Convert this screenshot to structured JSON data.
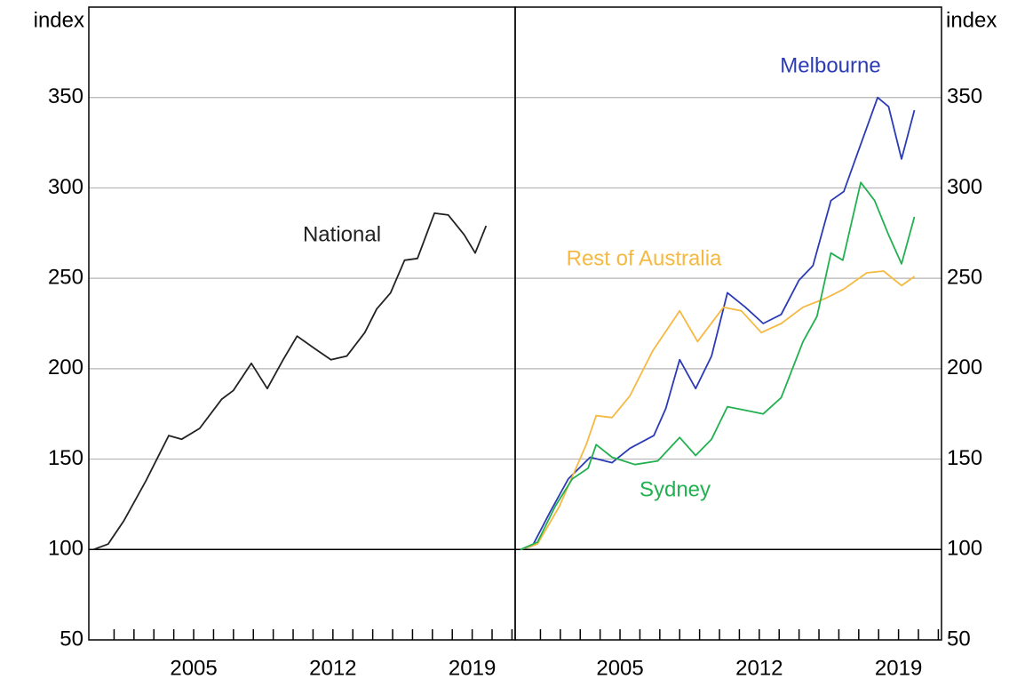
{
  "chart_data": [
    {
      "type": "line",
      "ylabel": "index",
      "y_axis_position": "left",
      "xlim": [
        1999.73,
        2021.16
      ],
      "xticks": [
        2005,
        2012,
        2019
      ],
      "minor_xticks": [
        2001,
        2002,
        2003,
        2004,
        2005,
        2006,
        2007,
        2008,
        2009,
        2010,
        2011,
        2012,
        2013,
        2014,
        2015,
        2016,
        2017,
        2018,
        2019,
        2020,
        2021
      ],
      "ylim": [
        50,
        400
      ],
      "yticks": [
        50,
        100,
        150,
        200,
        250,
        300,
        350
      ],
      "grid": true,
      "reference_line": 100,
      "series": [
        {
          "name": "National",
          "color": "#222222",
          "x": [
            1999.96,
            2000.7,
            2001.5,
            2002.6,
            2003.75,
            2004.4,
            2005.3,
            2006.4,
            2007.0,
            2007.9,
            2008.7,
            2009.5,
            2010.2,
            2011.1,
            2011.9,
            2012.7,
            2013.6,
            2014.2,
            2014.9,
            2015.6,
            2016.25,
            2017.1,
            2017.8,
            2018.6,
            2019.15,
            2019.7
          ],
          "values": [
            100,
            103,
            116,
            138,
            163,
            161,
            167,
            183,
            188,
            203,
            189,
            205,
            218,
            211,
            205,
            207,
            220,
            233,
            242,
            260,
            261,
            286,
            285,
            274,
            264,
            279
          ]
        }
      ]
    },
    {
      "type": "line",
      "ylabel": "index",
      "y_axis_position": "right",
      "xlim": [
        1999.73,
        2021.16
      ],
      "xticks": [
        2005,
        2012,
        2019
      ],
      "minor_xticks": [
        2001,
        2002,
        2003,
        2004,
        2005,
        2006,
        2007,
        2008,
        2009,
        2010,
        2011,
        2012,
        2013,
        2014,
        2015,
        2016,
        2017,
        2018,
        2019,
        2020,
        2021
      ],
      "ylim": [
        50,
        400
      ],
      "yticks": [
        50,
        100,
        150,
        200,
        250,
        300,
        350
      ],
      "grid": true,
      "reference_line": 100,
      "series": [
        {
          "name": "Melbourne",
          "color": "#2b3bb5",
          "x": [
            2000.0,
            2000.6,
            2001.5,
            2002.4,
            2003.5,
            2004.6,
            2005.5,
            2006.7,
            2007.3,
            2008.0,
            2008.8,
            2009.6,
            2010.4,
            2011.3,
            2012.2,
            2013.1,
            2014.0,
            2014.7,
            2015.6,
            2016.25,
            2016.9,
            2017.95,
            2018.5,
            2019.15,
            2019.8
          ],
          "values": [
            100,
            102,
            121,
            139,
            151,
            148,
            156,
            163,
            178,
            205,
            189,
            207,
            242,
            234,
            225,
            230,
            249,
            257,
            293,
            298,
            318,
            350,
            345,
            316,
            343
          ]
        },
        {
          "name": "Rest of Australia",
          "color": "#f5b942",
          "x": [
            2000.0,
            2000.85,
            2001.96,
            2003.3,
            2003.8,
            2004.6,
            2005.5,
            2006.65,
            2008.0,
            2008.9,
            2010.2,
            2011.1,
            2012.1,
            2013.1,
            2014.2,
            2015.35,
            2016.25,
            2017.4,
            2018.25,
            2019.15,
            2019.8
          ],
          "values": [
            100,
            103,
            124,
            158,
            174,
            173,
            185,
            210,
            232,
            215,
            234,
            232,
            220,
            225,
            234,
            239,
            244,
            253,
            254,
            246,
            251
          ]
        },
        {
          "name": "Sydney",
          "color": "#22b050",
          "x": [
            2000.0,
            2000.85,
            2001.75,
            2002.6,
            2003.4,
            2003.8,
            2004.6,
            2005.75,
            2006.9,
            2008.0,
            2008.8,
            2009.6,
            2010.4,
            2011.3,
            2012.2,
            2013.1,
            2014.2,
            2014.9,
            2015.6,
            2016.2,
            2017.1,
            2017.8,
            2018.5,
            2019.15,
            2019.8
          ],
          "values": [
            100,
            104,
            124,
            139,
            145,
            158,
            151,
            147,
            149,
            162,
            152,
            161,
            179,
            177,
            175,
            184,
            215,
            229,
            264,
            260,
            303,
            293,
            274,
            258,
            284
          ]
        }
      ]
    }
  ]
}
